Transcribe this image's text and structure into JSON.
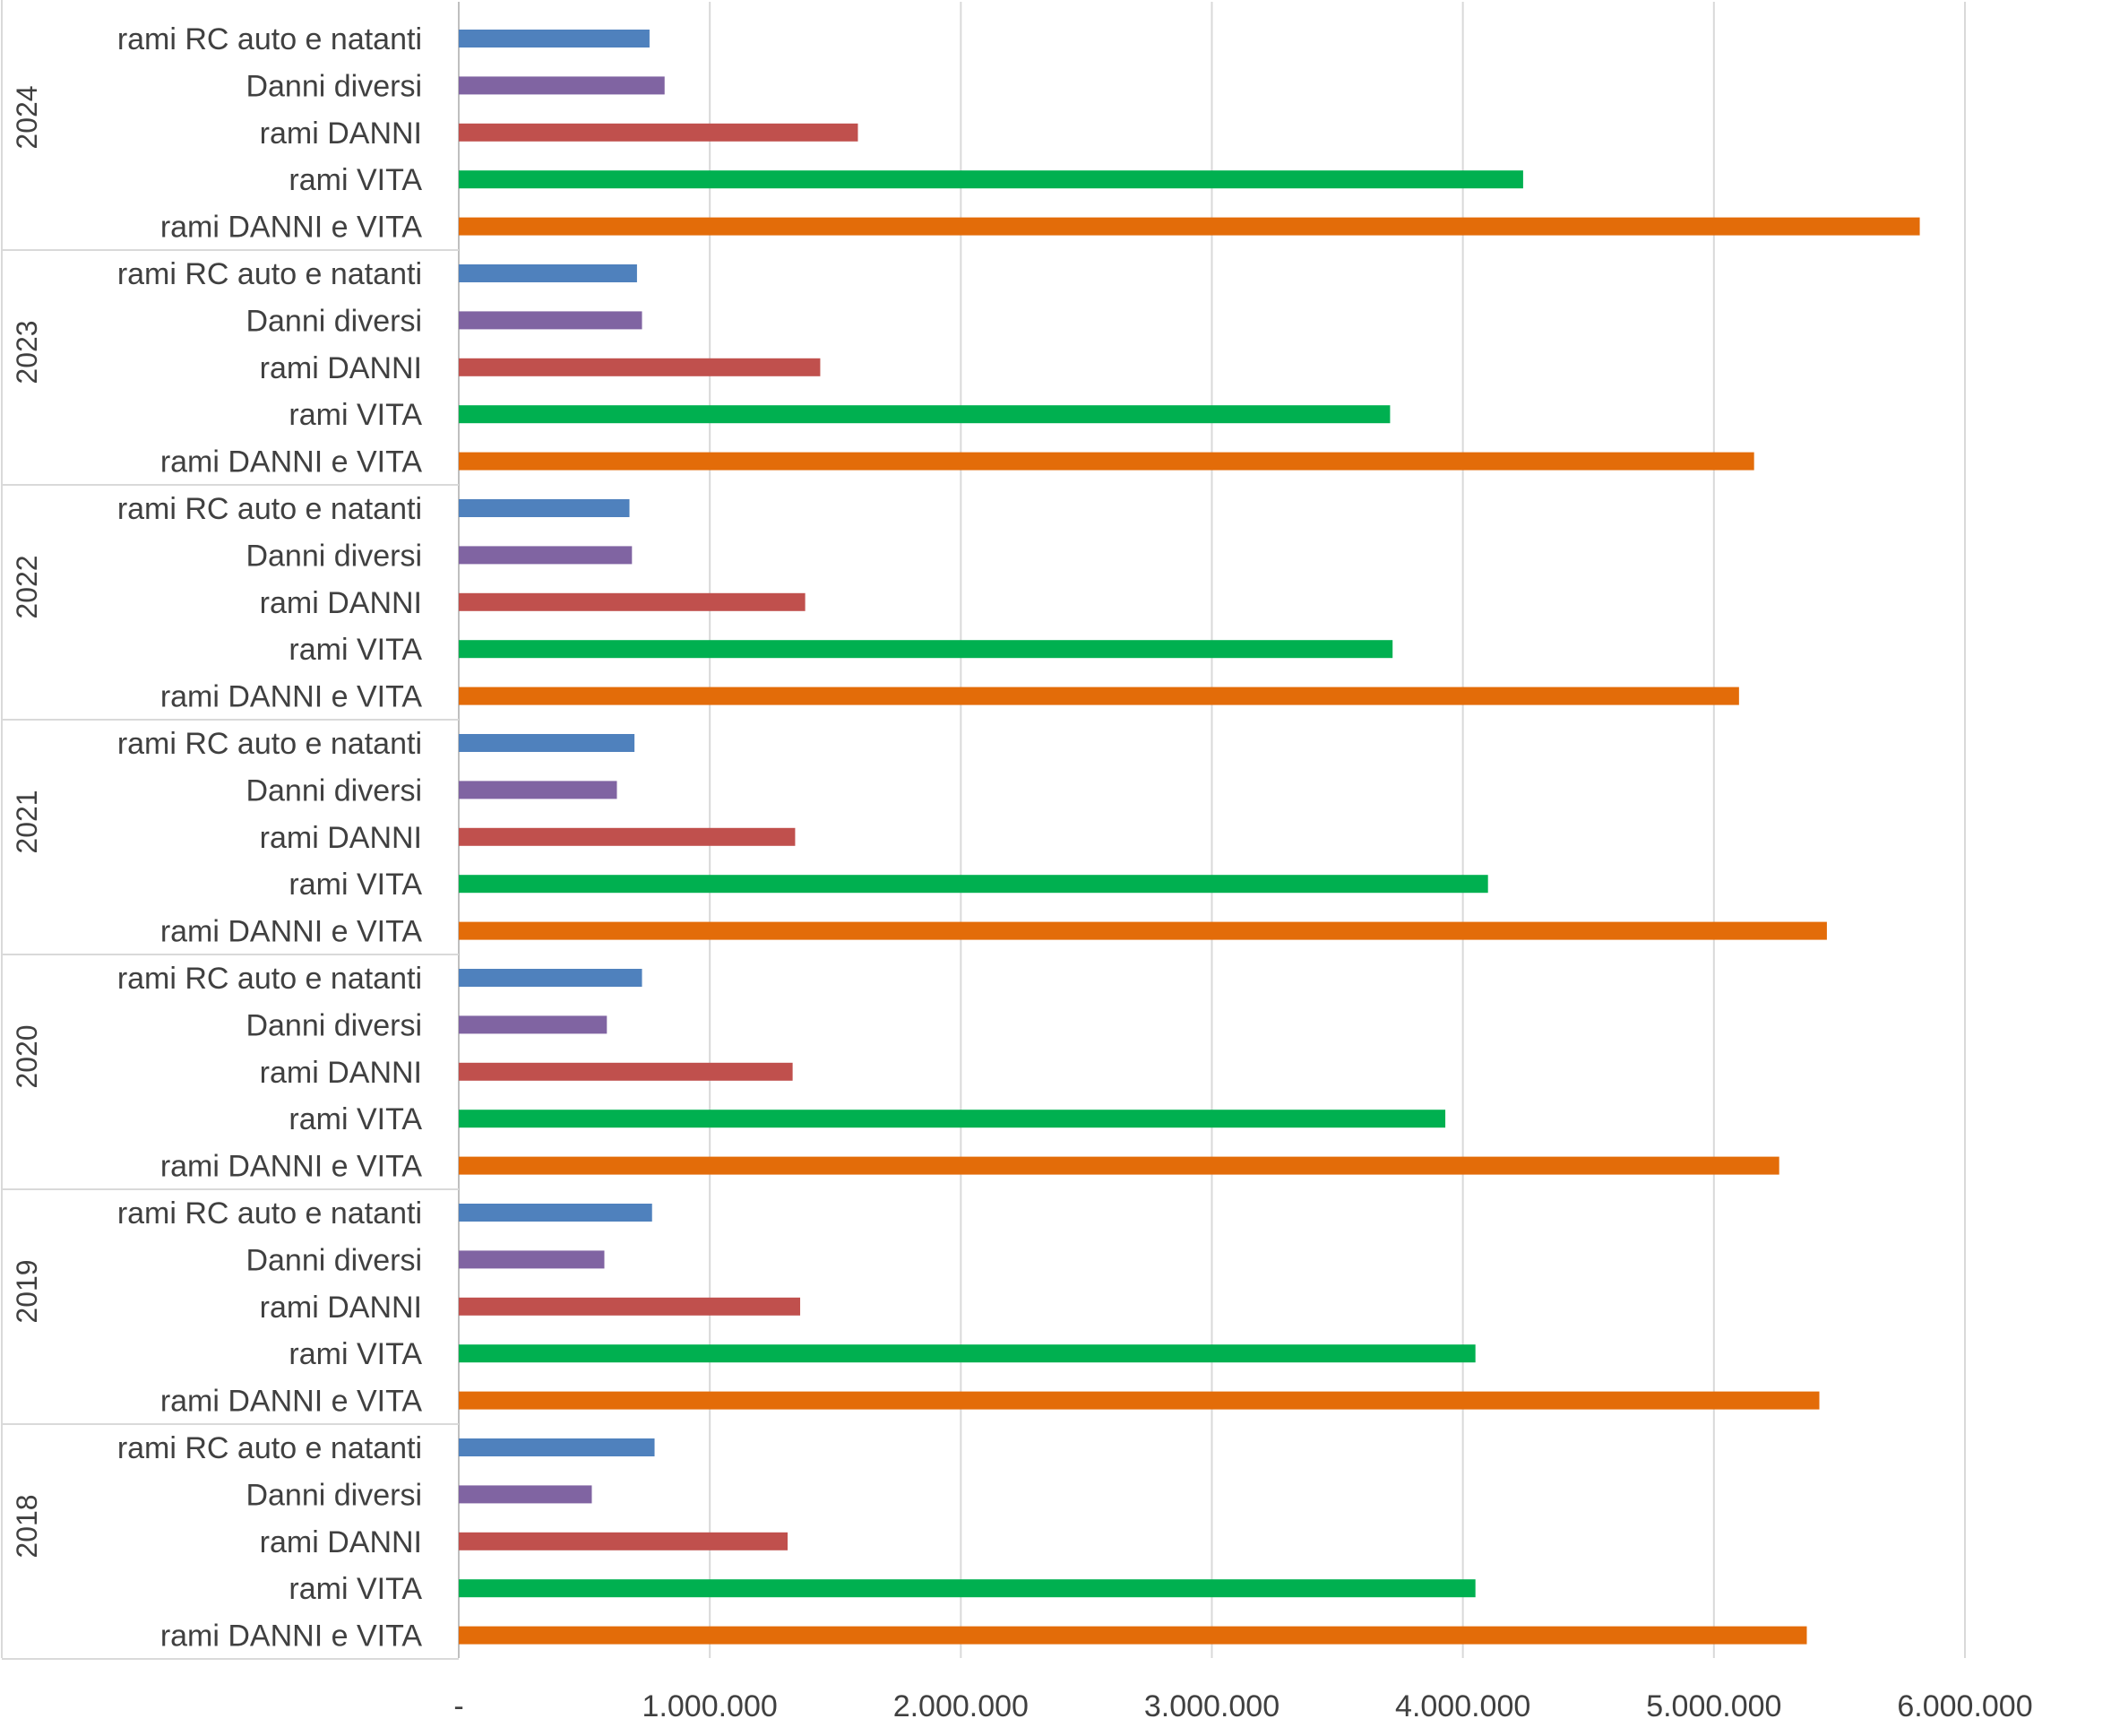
{
  "chart_data": {
    "type": "bar",
    "orientation": "horizontal",
    "grid": true,
    "xlim": [
      0,
      6000000
    ],
    "x_ticks": [
      {
        "value": 0,
        "label": "-"
      },
      {
        "value": 1000000,
        "label": "1.000.000"
      },
      {
        "value": 2000000,
        "label": "2.000.000"
      },
      {
        "value": 3000000,
        "label": "3.000.000"
      },
      {
        "value": 4000000,
        "label": "4.000.000"
      },
      {
        "value": 5000000,
        "label": "5.000.000"
      },
      {
        "value": 6000000,
        "label": "6.000.000"
      }
    ],
    "categories": [
      "rami RC auto e natanti",
      "Danni diversi",
      "rami DANNI",
      "rami VITA",
      "rami DANNI e VITA"
    ],
    "colors": {
      "rami RC auto e natanti": "#4f81bd",
      "Danni diversi": "#8064a2",
      "rami DANNI": "#c0504d",
      "rami VITA": "#00b050",
      "rami DANNI e VITA": "#e36c09"
    },
    "groups": [
      {
        "year": "2024",
        "values": [
          760000,
          820000,
          1590000,
          4240000,
          5820000
        ]
      },
      {
        "year": "2023",
        "values": [
          710000,
          730000,
          1440000,
          3710000,
          5160000
        ]
      },
      {
        "year": "2022",
        "values": [
          680000,
          690000,
          1380000,
          3720000,
          5100000
        ]
      },
      {
        "year": "2021",
        "values": [
          700000,
          630000,
          1340000,
          4100000,
          5450000
        ]
      },
      {
        "year": "2020",
        "values": [
          730000,
          590000,
          1330000,
          3930000,
          5260000
        ]
      },
      {
        "year": "2019",
        "values": [
          770000,
          580000,
          1360000,
          4050000,
          5420000
        ]
      },
      {
        "year": "2018",
        "values": [
          780000,
          530000,
          1310000,
          4050000,
          5370000
        ]
      }
    ]
  }
}
